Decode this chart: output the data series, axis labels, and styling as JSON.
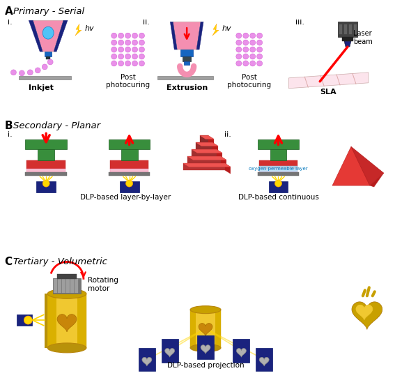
{
  "bg_color": "#ffffff",
  "section_A_label": "A",
  "section_A_title": "Primary - Serial",
  "section_B_label": "B",
  "section_B_title": "Secondary - Planar",
  "section_C_label": "C",
  "section_C_title": "Tertiary - Volumetric",
  "pink": "#F48FB1",
  "pink2": "#EE82EE",
  "pink_light": "#FCE4EC",
  "pink_bubble": "#E991E9",
  "dark_blue": "#1a237e",
  "cyan_blue": "#4FC3F7",
  "blue_nozzle": "#1565c0",
  "green": "#388e3c",
  "red": "#d32f2f",
  "red2": "#e53935",
  "gold": "#C8A000",
  "gold2": "#DAB000",
  "gold3": "#F0C830",
  "navy": "#1a237e",
  "gray_dark": "#616161",
  "gray_med": "#9e9e9e",
  "gray_light": "#bdbdbd",
  "yellow": "#FFD700",
  "oxygen_layer_color": "#B3E5FC",
  "label_i": "i.",
  "label_ii": "ii.",
  "label_iii": "iii.",
  "inkjet_label": "Inkjet",
  "post_photocuring": "Post\nphotocuring",
  "extrusion_label": "Extrusion",
  "sla_label": "SLA",
  "laser_beam_label": "Laser\nbeam",
  "dlp_layer": "DLP-based layer-by-layer",
  "dlp_continuous": "DLP-based continuous",
  "dlp_projection": "DLP-based projection",
  "rotating_motor": "Rotating\nmotor",
  "oxygen_label": "oxygen permeable layer",
  "hv": "hv"
}
